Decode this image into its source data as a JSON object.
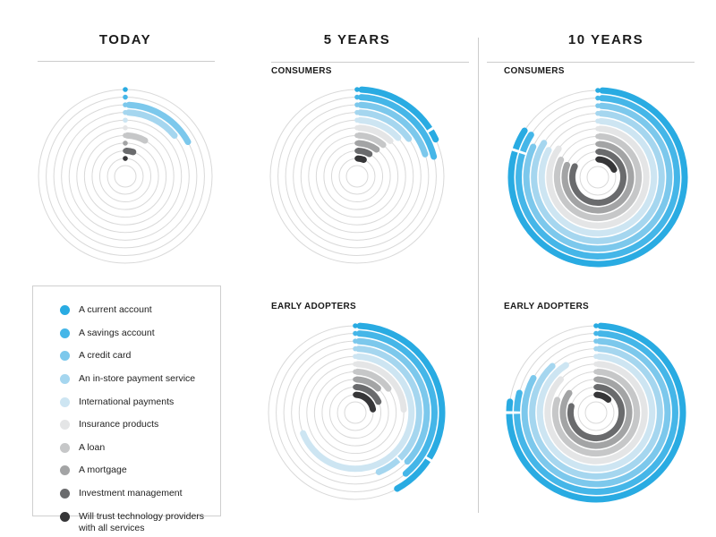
{
  "header": {
    "col_today": "TODAY",
    "col_5y": "5 YEARS",
    "col_10y": "10 YEARS"
  },
  "sections": {
    "consumers": "CONSUMERS",
    "early_adopters": "EARLY ADOPTERS"
  },
  "legend": {
    "items": [
      {
        "label": "A current account",
        "color": "#29abe2"
      },
      {
        "label": "A savings account",
        "color": "#45b6e8"
      },
      {
        "label": "A credit card",
        "color": "#7cc8ec"
      },
      {
        "label": "An in-store payment service",
        "color": "#a5d6ef"
      },
      {
        "label": "International payments",
        "color": "#cde5f2"
      },
      {
        "label": "Insurance products",
        "color": "#e4e5e6"
      },
      {
        "label": "A loan",
        "color": "#c6c7c8"
      },
      {
        "label": "A mortgage",
        "color": "#a3a4a5"
      },
      {
        "label": "Investment management",
        "color": "#6a6b6d"
      },
      {
        "label": "Will trust technology providers with all services",
        "color": "#363638"
      }
    ]
  },
  "chart_data": [
    {
      "id": "today",
      "type": "radial-bar",
      "title": "TODAY",
      "audience": null,
      "unit": "percent of circle, estimated from arc angles",
      "categories": [
        "A current account",
        "A savings account",
        "A credit card",
        "An in-store payment service",
        "International payments",
        "Insurance products",
        "A loan",
        "A mortgage",
        "Investment management",
        "Will trust technology providers with all services"
      ],
      "values": [
        0,
        0,
        17,
        14,
        0,
        0,
        8,
        0,
        5,
        0
      ],
      "ticks": []
    },
    {
      "id": "consumers-5y",
      "type": "radial-bar",
      "title": "5 YEARS",
      "audience": "CONSUMERS",
      "unit": "percent of circle, estimated from arc angles",
      "categories": [
        "A current account",
        "A savings account",
        "A credit card",
        "An in-store payment service",
        "International payments",
        "Insurance products",
        "A loan",
        "A mortgage",
        "Investment management",
        "Will trust technology providers with all services"
      ],
      "values": [
        18,
        21,
        20,
        15,
        13,
        12,
        11,
        10,
        8,
        6
      ],
      "ticks": [
        {
          "ring": 0,
          "at": 16
        }
      ]
    },
    {
      "id": "consumers-10y",
      "type": "radial-bar",
      "title": "10 YEARS",
      "audience": "CONSUMERS",
      "unit": "percent of circle, estimated from arc angles",
      "categories": [
        "A current account",
        "A savings account",
        "A credit card",
        "An in-store payment service",
        "International payments",
        "Insurance products",
        "A loan",
        "A mortgage",
        "Investment management",
        "Will trust technology providers with all services"
      ],
      "values": [
        84,
        84,
        82,
        84,
        83,
        85,
        82,
        81,
        82,
        18
      ],
      "ticks": [
        {
          "ring": 0,
          "at": 80
        },
        {
          "ring": 1,
          "at": 80
        }
      ]
    },
    {
      "id": "early-adopters-5y",
      "type": "radial-bar",
      "title": "5 YEARS",
      "audience": "EARLY ADOPTERS",
      "unit": "percent of circle, estimated from arc angles",
      "categories": [
        "A current account",
        "A savings account",
        "A credit card",
        "An in-store payment service",
        "International payments",
        "Insurance products",
        "A loan",
        "A mortgage",
        "Investment management",
        "Will trust technology providers with all services"
      ],
      "values": [
        42,
        39,
        37,
        44,
        69,
        24,
        15,
        12,
        18,
        22
      ],
      "ticks": [
        {
          "ring": 0,
          "at": 34
        },
        {
          "ring": 3,
          "at": 38
        }
      ]
    },
    {
      "id": "early-adopters-10y",
      "type": "radial-bar",
      "title": "10 YEARS",
      "audience": "EARLY ADOPTERS",
      "unit": "percent of circle, estimated from arc angles",
      "categories": [
        "A current account",
        "A savings account",
        "A credit card",
        "An in-store payment service",
        "International payments",
        "Insurance products",
        "A loan",
        "A mortgage",
        "Investment management",
        "Will trust technology providers with all services"
      ],
      "values": [
        77,
        79,
        83,
        88,
        91,
        87,
        80,
        85,
        79,
        12
      ],
      "ticks": [
        {
          "ring": 0,
          "at": 75
        },
        {
          "ring": 1,
          "at": 75
        }
      ]
    }
  ],
  "style": {
    "grid_color": "#d9d9d9",
    "rule_color": "#cccccc",
    "background": "#ffffff"
  }
}
